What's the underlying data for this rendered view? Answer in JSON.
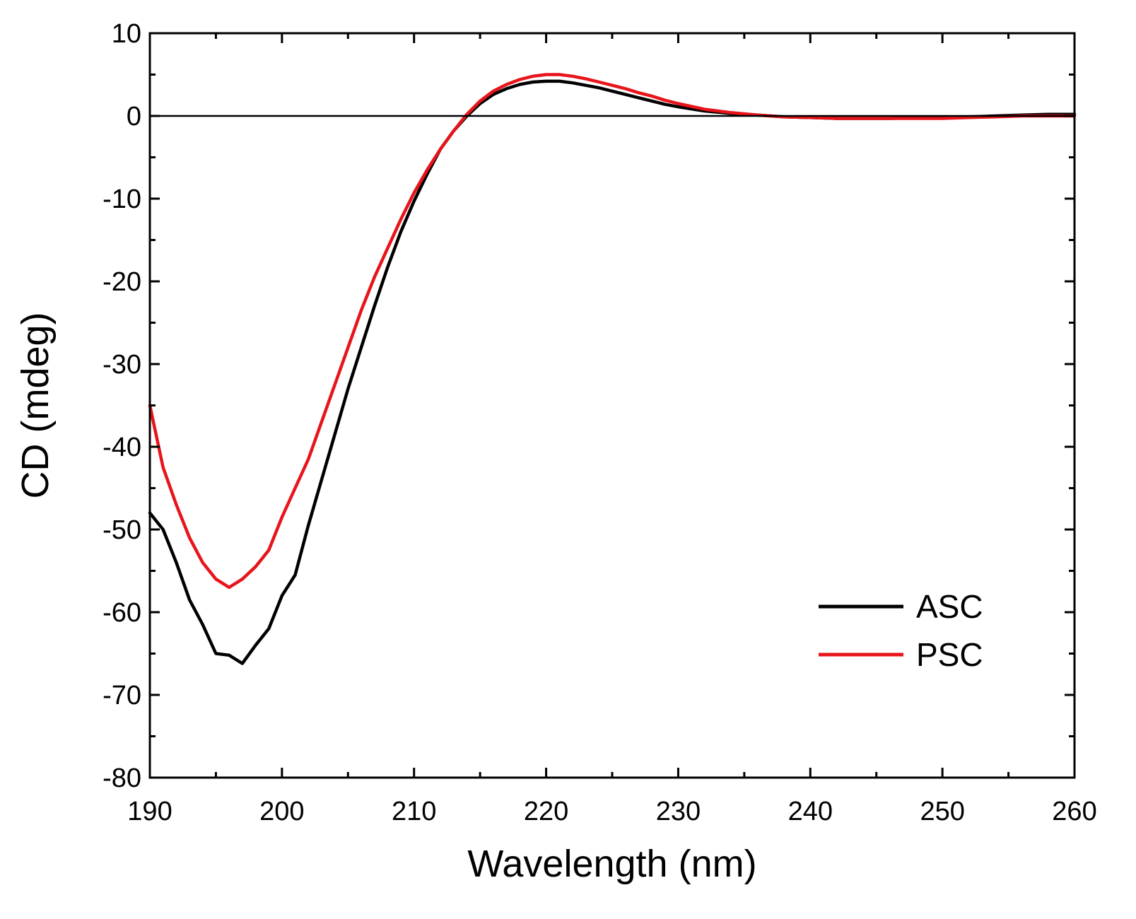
{
  "chart_data": {
    "type": "line",
    "xlabel": "Wavelength (nm)",
    "ylabel": "CD (mdeg)",
    "xlim": [
      190,
      260
    ],
    "ylim": [
      -80,
      10
    ],
    "x_ticks": [
      190,
      200,
      210,
      220,
      230,
      240,
      250,
      260
    ],
    "y_ticks": [
      10,
      0,
      -10,
      -20,
      -30,
      -40,
      -50,
      -60,
      -70,
      -80
    ],
    "zero_line": true,
    "grid": false,
    "legend_position": "bottom-right",
    "series": [
      {
        "name": "ASC",
        "color": "#000000",
        "x": [
          190,
          191,
          192,
          193,
          194,
          195,
          196,
          197,
          198,
          199,
          200,
          201,
          202,
          203,
          204,
          205,
          206,
          207,
          208,
          209,
          210,
          211,
          212,
          213,
          214,
          215,
          216,
          217,
          218,
          219,
          220,
          221,
          222,
          223,
          224,
          225,
          226,
          227,
          228,
          229,
          230,
          232,
          234,
          236,
          238,
          240,
          242,
          244,
          246,
          248,
          250,
          252,
          254,
          256,
          258,
          260
        ],
        "y": [
          -48,
          -50,
          -54,
          -58.5,
          -61.5,
          -65,
          -65.2,
          -66.2,
          -64,
          -62,
          -58,
          -55.5,
          -49.5,
          -44,
          -38.5,
          -33,
          -28,
          -23,
          -18.3,
          -14,
          -10.3,
          -7,
          -4,
          -1.8,
          0,
          1.5,
          2.6,
          3.3,
          3.8,
          4.1,
          4.2,
          4.2,
          4.0,
          3.7,
          3.4,
          3.0,
          2.6,
          2.2,
          1.8,
          1.4,
          1.1,
          0.6,
          0.3,
          0.1,
          -0.1,
          -0.2,
          -0.3,
          -0.3,
          -0.3,
          -0.2,
          -0.2,
          -0.1,
          0,
          0.1,
          0.2,
          0.2
        ]
      },
      {
        "name": "PSC",
        "color": "#e8141b",
        "x": [
          190,
          191,
          192,
          193,
          194,
          195,
          196,
          197,
          198,
          199,
          200,
          201,
          202,
          203,
          204,
          205,
          206,
          207,
          208,
          209,
          210,
          211,
          212,
          213,
          214,
          215,
          216,
          217,
          218,
          219,
          220,
          221,
          222,
          223,
          224,
          225,
          226,
          227,
          228,
          229,
          230,
          232,
          234,
          236,
          238,
          240,
          242,
          244,
          246,
          248,
          250,
          252,
          254,
          256,
          258,
          260
        ],
        "y": [
          -35,
          -42.5,
          -47,
          -51,
          -54,
          -56,
          -57,
          -56,
          -54.5,
          -52.5,
          -48.5,
          -45,
          -41.5,
          -37,
          -32.5,
          -28,
          -23.5,
          -19.5,
          -16,
          -12.5,
          -9.3,
          -6.5,
          -4,
          -1.8,
          0.2,
          1.8,
          3.0,
          3.8,
          4.4,
          4.8,
          5.0,
          5.0,
          4.8,
          4.5,
          4.1,
          3.7,
          3.3,
          2.8,
          2.4,
          1.9,
          1.5,
          0.8,
          0.4,
          0.1,
          -0.1,
          -0.2,
          -0.3,
          -0.3,
          -0.3,
          -0.3,
          -0.3,
          -0.2,
          -0.1,
          0,
          0,
          0
        ]
      }
    ]
  }
}
